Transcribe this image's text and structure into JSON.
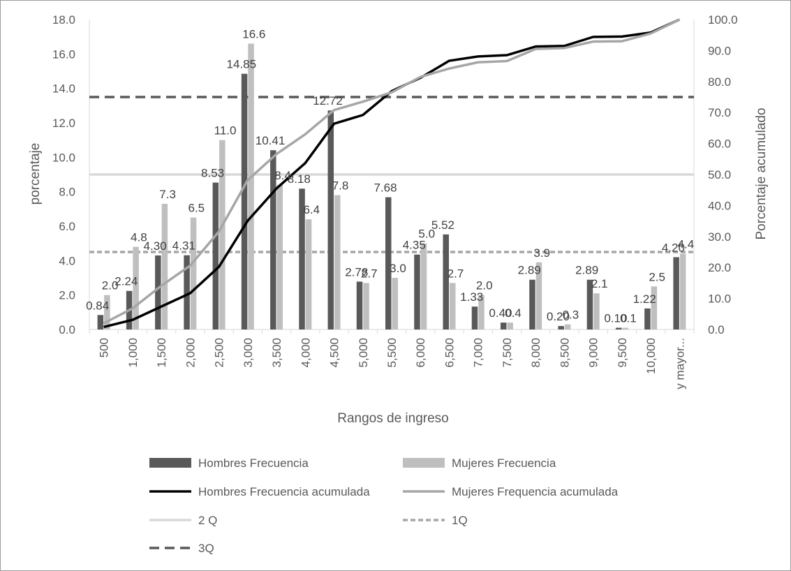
{
  "chart_data": {
    "type": "bar",
    "xlabel": "Rangos de ingreso",
    "ylabel": "porcentaje",
    "y2label": "Porcentaje acumulado",
    "ylim": [
      0,
      18
    ],
    "y2lim": [
      0,
      100
    ],
    "yticks": [
      "0.0",
      "2.0",
      "4.0",
      "6.0",
      "8.0",
      "10.0",
      "12.0",
      "14.0",
      "16.0",
      "18.0"
    ],
    "y2ticks": [
      "0.0",
      "10.0",
      "20.0",
      "30.0",
      "40.0",
      "50.0",
      "60.0",
      "70.0",
      "80.0",
      "90.0",
      "100.0"
    ],
    "categories": [
      "500",
      "1,000",
      "1,500",
      "2,000",
      "2,500",
      "3,000",
      "3,500",
      "4,000",
      "4,500",
      "5,000",
      "5,500",
      "6,000",
      "6,500",
      "7,000",
      "7,500",
      "8,000",
      "8,500",
      "9,000",
      "9,500",
      "10,000",
      "y mayor..."
    ],
    "series": [
      {
        "name": "Hombres Frecuencia",
        "kind": "bar",
        "color": "#595959",
        "values": [
          0.84,
          2.24,
          4.3,
          4.31,
          8.53,
          14.85,
          10.41,
          8.18,
          12.72,
          2.78,
          7.68,
          4.35,
          5.52,
          1.33,
          0.4,
          2.89,
          0.2,
          2.89,
          0.1,
          1.22,
          4.2
        ],
        "labels": [
          "0.84",
          "2.24",
          "4.30",
          "4.31",
          "8.53",
          "14.85",
          "10.41",
          "8.18",
          "12.72",
          "2.78",
          "7.68",
          "4.35",
          "5.52",
          "1.33",
          "0.40",
          "2.89",
          "0.20",
          "2.89",
          "0.10",
          "1.22",
          "4.20"
        ]
      },
      {
        "name": "Mujeres Frecuencia",
        "kind": "bar",
        "color": "#bfbfbf",
        "values": [
          2.0,
          4.8,
          7.3,
          6.5,
          11.0,
          16.6,
          8.4,
          6.4,
          7.8,
          2.7,
          3.0,
          5.0,
          2.7,
          2.0,
          0.4,
          3.9,
          0.3,
          2.1,
          0.1,
          2.5,
          4.4
        ],
        "labels": [
          "2.0",
          "4.8",
          "7.3",
          "6.5",
          "11.0",
          "16.6",
          "8.4",
          "6.4",
          "7.8",
          "2.7",
          "3.0",
          "5.0",
          "2.7",
          "2.0",
          "0.4",
          "3.9",
          "0.3",
          "2.1",
          "0.1",
          "2.5",
          "4.4"
        ]
      },
      {
        "name": "Hombres Frecuencia acumulada",
        "kind": "line",
        "axis": "y2",
        "color": "#000000",
        "values": [
          0.8,
          3.1,
          7.4,
          11.7,
          20.2,
          35.1,
          45.5,
          53.7,
          66.4,
          69.2,
          76.9,
          81.2,
          86.7,
          88.1,
          88.5,
          91.3,
          91.5,
          94.4,
          94.5,
          95.8,
          100.0
        ]
      },
      {
        "name": "Mujeres Frequencia acumulada",
        "kind": "line",
        "axis": "y2",
        "color": "#a6a6a6",
        "values": [
          2.0,
          6.8,
          14.1,
          20.6,
          31.6,
          48.2,
          56.6,
          63.0,
          70.8,
          73.5,
          76.5,
          81.5,
          84.2,
          86.2,
          86.6,
          90.5,
          90.8,
          92.9,
          93.0,
          95.5,
          100.0
        ]
      },
      {
        "name": "2 Q",
        "kind": "hline",
        "axis": "y2",
        "value": 50,
        "color": "#d9d9d9",
        "dash": "solid"
      },
      {
        "name": "1Q",
        "kind": "hline",
        "axis": "y2",
        "value": 25,
        "color": "#a6a6a6",
        "dash": "short"
      },
      {
        "name": "3Q",
        "kind": "hline",
        "axis": "y2",
        "value": 75,
        "color": "#595959",
        "dash": "long"
      }
    ],
    "grid": false,
    "legend_position": "bottom"
  }
}
